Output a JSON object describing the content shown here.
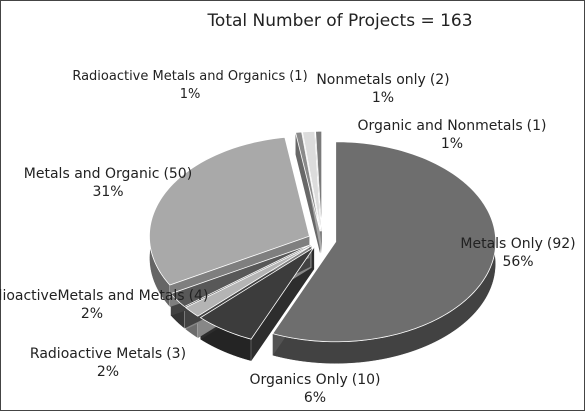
{
  "chart_data": {
    "type": "pie",
    "title": "Total Number of Projects = 163",
    "categories": [
      "Metals Only",
      "Organics Only",
      "Radioactive Metals",
      "RadioactiveMetals and Metals",
      "Metals and Organic",
      "Radioactive Metals and Organics",
      "Nonmetals only",
      "Organic and Nonmetals"
    ],
    "values": [
      92,
      10,
      3,
      4,
      50,
      1,
      2,
      1
    ],
    "value_labels": [
      "(92)",
      "(10)",
      "(3)",
      "(4)",
      "(50)",
      "(1)",
      "(2)",
      "(1)"
    ],
    "percents": [
      56,
      6,
      2,
      2,
      31,
      1,
      1,
      1
    ],
    "percent_labels": [
      "56%",
      "6%",
      "2%",
      "2%",
      "31%",
      "1%",
      "1%",
      "1%"
    ],
    "colors": [
      "#6e6e6e",
      "#3c3c3c",
      "#b4b4b4",
      "#585858",
      "#a9a9a9",
      "#8a8a8a",
      "#dcdcdc",
      "#7a7a7a"
    ]
  }
}
